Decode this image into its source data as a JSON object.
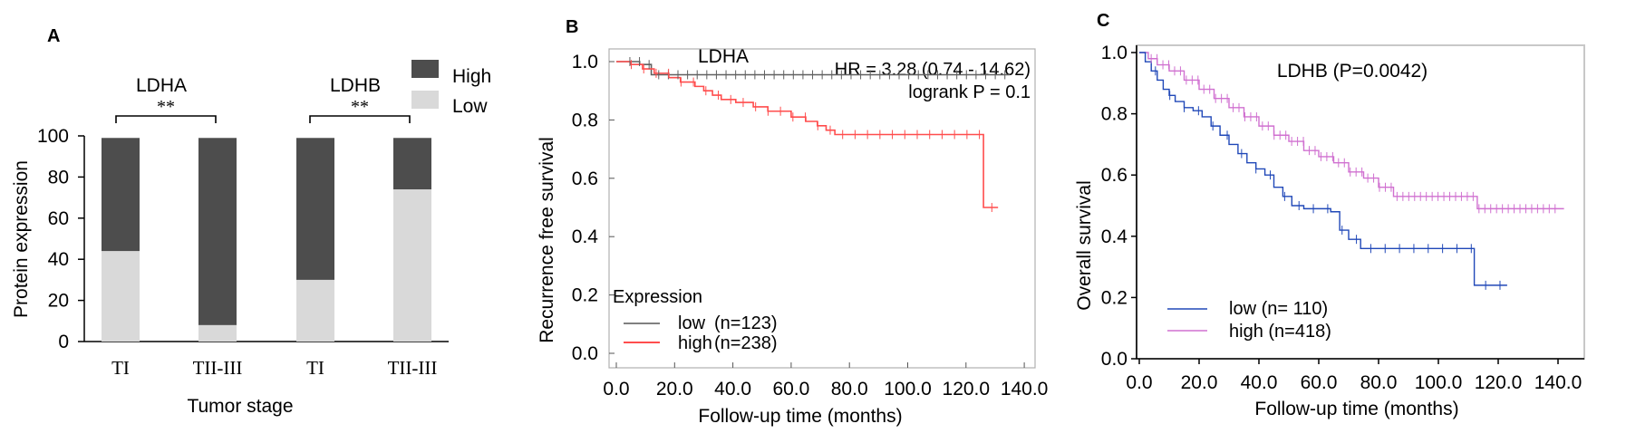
{
  "panels": {
    "a": {
      "letter": "A",
      "legend": [
        {
          "label": "High",
          "color": "#4d4d4d"
        },
        {
          "label": "Low",
          "color": "#d9d9d9"
        }
      ],
      "groups": [
        {
          "gene": "LDHA",
          "sig": "**"
        },
        {
          "gene": "LDHB",
          "sig": "**"
        }
      ],
      "categories": [
        "TI",
        "TII-III",
        "TI",
        "TII-III"
      ],
      "ylabel": "Protein expression",
      "xlabel": "Tumor stage",
      "yticks": [
        "0",
        "20",
        "40",
        "60",
        "80",
        "100"
      ]
    },
    "b": {
      "letter": "B",
      "title": "LDHA",
      "hr": "HR = 3.28 (0.74 - 14.62)",
      "logrank": "logrank P = 0.1",
      "ylabel": "Recurrence free survival",
      "xlabel": "Follow-up time (months)",
      "legend_title": "Expression",
      "legend": [
        {
          "name": "low",
          "n": "(n=123)",
          "color": "#808080"
        },
        {
          "name": "high",
          "n": "(n=238)",
          "color": "#ff4d4d"
        }
      ],
      "yticks": [
        "0.0",
        "0.2",
        "0.4",
        "0.6",
        "0.8",
        "1.0"
      ],
      "xticks": [
        "0.0",
        "20.0",
        "40.0",
        "60.0",
        "80.0",
        "100.0",
        "120.0",
        "140.0"
      ]
    },
    "c": {
      "letter": "C",
      "title": "LDHB (P=0.0042)",
      "ylabel": "Overall survival",
      "xlabel": "Follow-up time (months)",
      "legend": [
        {
          "label": "low (n= 110)",
          "color": "#2048b8"
        },
        {
          "label": "high (n=418)",
          "color": "#d070d0"
        }
      ],
      "yticks": [
        "0.0",
        "0.2",
        "0.4",
        "0.6",
        "0.8",
        "1.0"
      ],
      "xticks": [
        "0.0",
        "20.0",
        "40.0",
        "60.0",
        "80.0",
        "100.0",
        "120.0",
        "140.0"
      ]
    }
  },
  "chart_data": [
    {
      "type": "bar",
      "stacked": true,
      "categories": [
        "TI",
        "TII-III",
        "TI",
        "TII-III"
      ],
      "groups": [
        "LDHA",
        "LDHA",
        "LDHB",
        "LDHB"
      ],
      "series": [
        {
          "name": "Low",
          "values": [
            44,
            8,
            30,
            74
          ]
        },
        {
          "name": "High",
          "values": [
            55,
            91,
            69,
            25
          ]
        }
      ],
      "ylim": [
        0,
        100
      ],
      "xlabel": "Tumor stage",
      "ylabel": "Protein expression",
      "legend": "top-right"
    },
    {
      "type": "line",
      "step": true,
      "title": "LDHA",
      "xlabel": "Follow-up time (months)",
      "ylabel": "Recurrence free survival",
      "xlim": [
        0,
        140
      ],
      "ylim": [
        0,
        1
      ],
      "series": [
        {
          "name": "low",
          "x": [
            0,
            8,
            12,
            135
          ],
          "y": [
            1.0,
            0.99,
            0.955,
            0.955
          ]
        },
        {
          "name": "high",
          "x": [
            0,
            5,
            9,
            13,
            18,
            22,
            27,
            30,
            33,
            36,
            41,
            47,
            52,
            60,
            65,
            69,
            72,
            75,
            85,
            100,
            110,
            124,
            126,
            131
          ],
          "y": [
            1.0,
            0.99,
            0.975,
            0.96,
            0.945,
            0.93,
            0.915,
            0.9,
            0.885,
            0.87,
            0.86,
            0.845,
            0.83,
            0.81,
            0.795,
            0.78,
            0.765,
            0.75,
            0.75,
            0.75,
            0.75,
            0.75,
            0.5,
            0.5
          ]
        }
      ],
      "legend": "bottom-left"
    },
    {
      "type": "line",
      "step": true,
      "title": "LDHB (P=0.0042)",
      "xlabel": "Follow-up time (months)",
      "ylabel": "Overall survival",
      "xlim": [
        0,
        140
      ],
      "ylim": [
        0,
        1
      ],
      "series": [
        {
          "name": "low (n= 110)",
          "x": [
            0,
            2,
            4,
            6,
            8,
            10,
            12,
            15,
            18,
            21,
            24,
            27,
            30,
            33,
            36,
            39,
            42,
            45,
            48,
            51,
            55,
            60,
            64,
            67,
            70,
            74,
            80,
            90,
            100,
            110,
            112,
            123
          ],
          "y": [
            1.0,
            0.97,
            0.94,
            0.91,
            0.88,
            0.86,
            0.84,
            0.82,
            0.81,
            0.79,
            0.76,
            0.73,
            0.7,
            0.67,
            0.64,
            0.62,
            0.6,
            0.56,
            0.53,
            0.5,
            0.49,
            0.49,
            0.48,
            0.42,
            0.39,
            0.36,
            0.36,
            0.36,
            0.36,
            0.36,
            0.24,
            0.24
          ]
        },
        {
          "name": "high (n=418)",
          "x": [
            0,
            3,
            6,
            10,
            15,
            20,
            25,
            30,
            35,
            40,
            45,
            50,
            55,
            60,
            65,
            70,
            75,
            80,
            85,
            95,
            110,
            113,
            120,
            142
          ],
          "y": [
            1.0,
            0.98,
            0.96,
            0.94,
            0.91,
            0.88,
            0.85,
            0.82,
            0.79,
            0.76,
            0.73,
            0.71,
            0.68,
            0.66,
            0.64,
            0.61,
            0.59,
            0.56,
            0.53,
            0.53,
            0.53,
            0.49,
            0.49,
            0.49
          ]
        }
      ],
      "legend": "bottom-left"
    }
  ]
}
